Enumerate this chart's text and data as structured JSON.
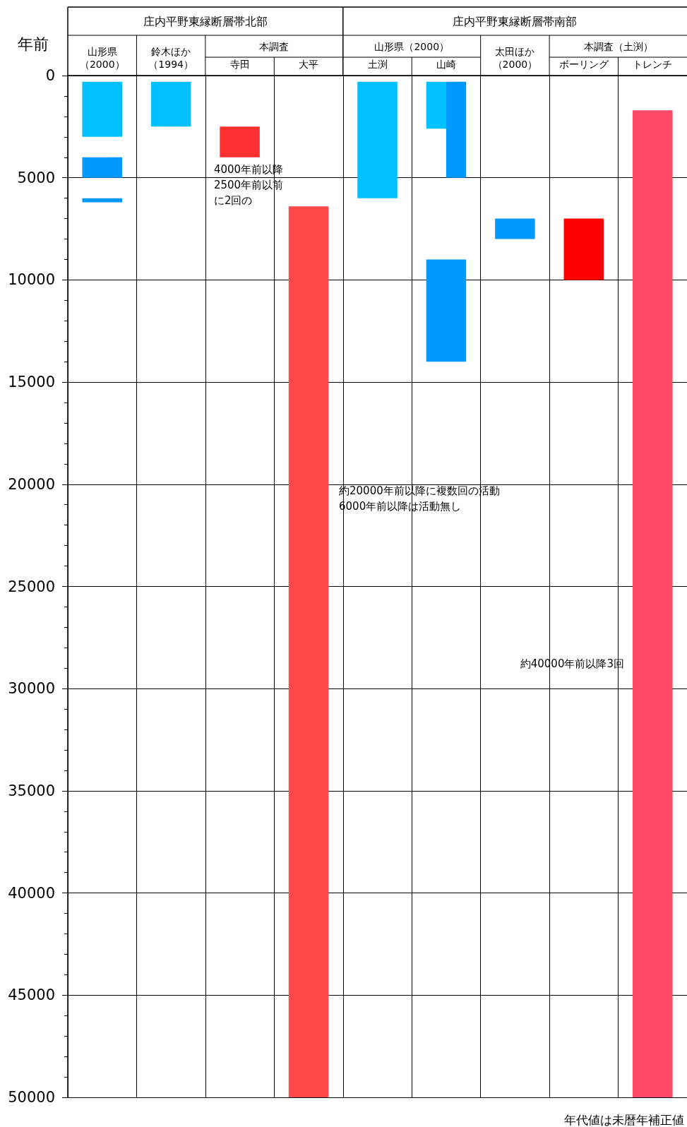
{
  "chart_data": {
    "type": "bar",
    "ylabel": "年前",
    "categories": [
      "山形県（2000）",
      "鈴木ほか（1994）",
      "寺田",
      "大平",
      "土渕",
      "山崎",
      "太田ほか（2000）",
      "ボーリング",
      "トレンチ"
    ],
    "series": [
      {
        "base": [
          300,
          300,
          2500,
          6400,
          300,
          300,
          7000,
          7000,
          1700
        ],
        "values": [
          2700,
          2200,
          1500,
          43600,
          5700,
          2300,
          1000,
          3000,
          48300
        ],
        "colors": [
          "#00c0ff",
          "#00c0ff",
          "#ff3030",
          "#ff4848",
          "#00c0ff",
          "#00c0ff",
          "#0099ff",
          "#ff0000",
          "#ff4868"
        ]
      },
      {
        "base": [
          4000,
          null,
          null,
          null,
          null,
          9000,
          null,
          null,
          null
        ],
        "values": [
          1000,
          null,
          null,
          null,
          null,
          5000,
          null,
          null,
          null
        ],
        "colors": [
          "#0099ff",
          null,
          null,
          null,
          null,
          "#0099ff",
          null,
          null,
          null
        ]
      },
      {
        "base": [
          6000,
          null,
          null,
          null,
          null,
          300,
          null,
          null,
          null
        ],
        "values": [
          200,
          null,
          null,
          null,
          null,
          4700,
          null,
          null,
          null
        ],
        "colors": [
          "#0099ff",
          null,
          null,
          null,
          null,
          "#0099ff",
          null,
          null,
          null
        ]
      }
    ],
    "ylim": [
      50000,
      0
    ],
    "yticks": [
      0,
      {
        "value": 1000,
        "label": null
      },
      {
        "value": 2000,
        "label": null
      },
      {
        "value": 3000,
        "label": null
      },
      {
        "value": 4000,
        "label": null
      },
      5000,
      {
        "value": 6000,
        "label": null
      },
      {
        "value": 7000,
        "label": null
      },
      {
        "value": 8000,
        "label": null
      },
      {
        "value": 9000,
        "label": null
      },
      10000,
      {
        "value": 11000,
        "label": null
      },
      {
        "value": 12000,
        "label": null
      },
      {
        "value": 13000,
        "label": null
      },
      {
        "value": 14000,
        "label": null
      },
      15000,
      {
        "value": 16000,
        "label": null
      },
      {
        "value": 17000,
        "label": null
      },
      {
        "value": 18000,
        "label": null
      },
      {
        "value": 19000,
        "label": null
      },
      20000,
      {
        "value": 21000,
        "label": null
      },
      {
        "value": 22000,
        "label": null
      },
      {
        "value": 23000,
        "label": null
      },
      {
        "value": 24000,
        "label": null
      },
      25000,
      {
        "value": 26000,
        "label": null
      },
      {
        "value": 27000,
        "label": null
      },
      {
        "value": 28000,
        "label": null
      },
      {
        "value": 29000,
        "label": null
      },
      30000,
      {
        "value": 31000,
        "label": null
      },
      {
        "value": 32000,
        "label": null
      },
      {
        "value": 33000,
        "label": null
      },
      {
        "value": 34000,
        "label": null
      },
      35000,
      {
        "value": 36000,
        "label": null
      },
      {
        "value": 37000,
        "label": null
      },
      {
        "value": 38000,
        "label": null
      },
      {
        "value": 39000,
        "label": null
      },
      40000,
      {
        "value": 41000,
        "label": null
      },
      {
        "value": 42000,
        "label": null
      },
      {
        "value": 43000,
        "label": null
      },
      {
        "value": 44000,
        "label": null
      },
      45000,
      {
        "value": 46000,
        "label": null
      },
      {
        "value": 47000,
        "label": null
      },
      {
        "value": 48000,
        "label": null
      },
      {
        "value": 49000,
        "label": null
      },
      50000
    ],
    "grid": true,
    "annotations": [
      "庄内平野東縁断層帯北部",
      "庄内平野東縁断層帯南部",
      "本調査",
      "山形県（2000）",
      "本調査（土渕）",
      {
        "text": "4000年前以降2500年前以前に2回の",
        "x": "寺田",
        "y": 4000
      },
      "約20000年前以降に複数回の活動\n6000年前以降は活動無し",
      "約40000年前以降3回",
      "年代値は未暦年補正値"
    ]
  }
}
